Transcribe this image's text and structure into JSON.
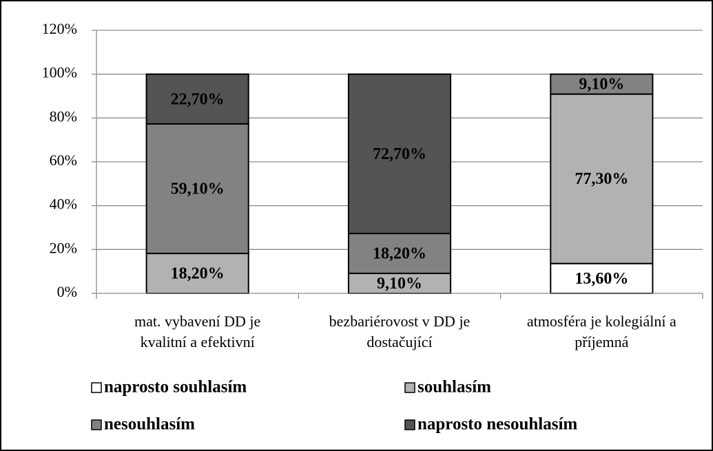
{
  "chart_data": {
    "type": "stacked-bar",
    "categories": [
      "mat. vybavení DD je\nkvalitní a efektivní",
      "bezbariérovost v DD je\ndostačující",
      "atmosféra je kolegiální a\npříjemná"
    ],
    "series": [
      {
        "name": "naprosto souhlasím",
        "color": "#ffffff",
        "values": [
          0,
          0,
          13.6
        ],
        "value_labels": [
          null,
          null,
          "13,60%"
        ]
      },
      {
        "name": "souhlasím",
        "color": "#b2b2b2",
        "values": [
          18.2,
          9.1,
          77.3
        ],
        "value_labels": [
          "18,20%",
          "9,10%",
          "77,30%"
        ]
      },
      {
        "name": "nesouhlasím",
        "color": "#828282",
        "values": [
          59.1,
          18.2,
          9.1
        ],
        "value_labels": [
          "59,10%",
          "18,20%",
          "9,10%"
        ]
      },
      {
        "name": "naprosto nesouhlasím",
        "color": "#545454",
        "values": [
          22.7,
          72.7,
          0
        ],
        "value_labels": [
          "22,70%",
          "72,70%",
          null
        ]
      }
    ],
    "ylim": [
      0,
      120
    ],
    "yticks": [
      {
        "value": 0,
        "label": "0%"
      },
      {
        "value": 20,
        "label": "20%"
      },
      {
        "value": 40,
        "label": "40%"
      },
      {
        "value": 60,
        "label": "60%"
      },
      {
        "value": 80,
        "label": "80%"
      },
      {
        "value": 100,
        "label": "100%"
      },
      {
        "value": 120,
        "label": "120%"
      }
    ],
    "grid": true,
    "legend": "bottom"
  }
}
